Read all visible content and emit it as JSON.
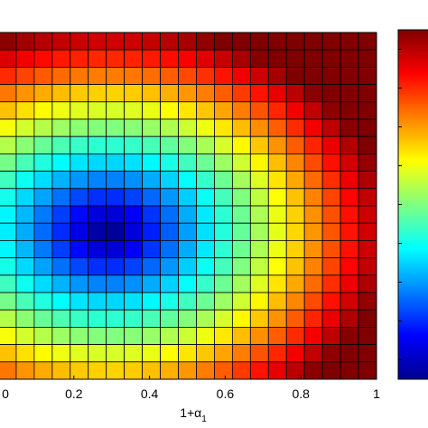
{
  "chart_data": {
    "type": "heatmap",
    "title": "",
    "xlabel": {
      "base": "1+α",
      "subscript": "1"
    },
    "ylabel": "",
    "xlim": [
      0,
      1
    ],
    "x_ticks": [
      {
        "value": 0,
        "label": "0"
      },
      {
        "value": 0.2,
        "label": "0.2"
      },
      {
        "value": 0.4,
        "label": "0.4"
      },
      {
        "value": 0.6,
        "label": "0.6"
      },
      {
        "value": 0.8,
        "label": "0.8"
      },
      {
        "value": 1,
        "label": "1"
      }
    ],
    "grid_columns": 21,
    "grid_rows": 20,
    "colormap": "jet",
    "value_range": [
      0,
      1
    ],
    "value_model": "normalized color level per cell: 0.92*sqrt(((x-0.28)/0.72)^2 + ((row-11)/11)^2) clipped to [0,1], x in [0,1] across columns, row 0 = top",
    "colorbar": {
      "present": true,
      "orientation": "vertical",
      "tick_labels_visible": false,
      "tick_count": 9
    },
    "grid_lines": true,
    "grid_line_color": "#000000"
  }
}
